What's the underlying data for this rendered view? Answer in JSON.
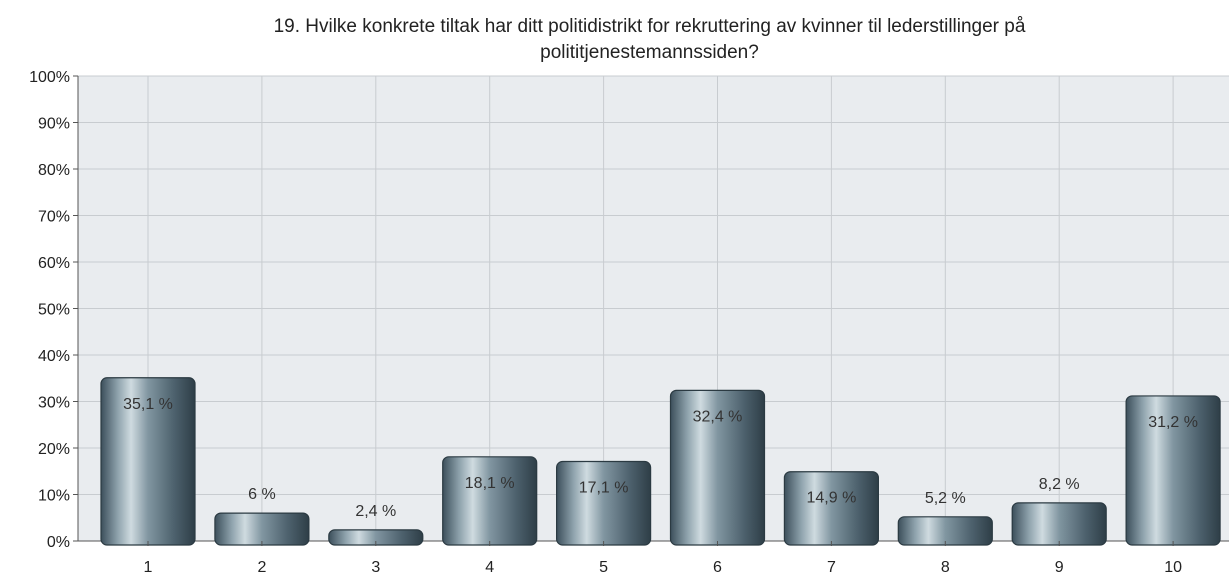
{
  "chart_data": {
    "type": "bar",
    "title_line1": "19. Hvilke konkrete tiltak har ditt politidistrikt for rekruttering av kvinner til lederstillinger på",
    "title_line2": "polititjenestemannssiden?",
    "categories": [
      "1",
      "2",
      "3",
      "4",
      "5",
      "6",
      "7",
      "8",
      "9",
      "10"
    ],
    "values": [
      35.1,
      6,
      2.4,
      18.1,
      17.1,
      32.4,
      14.9,
      5.2,
      8.2,
      31.2
    ],
    "data_labels": [
      "35,1 %",
      "6 %",
      "2,4 %",
      "18,1 %",
      "17,1 %",
      "32,4 %",
      "14,9 %",
      "5,2 %",
      "8,2 %",
      "31,2 %"
    ],
    "y_ticks": [
      "0%",
      "10%",
      "20%",
      "30%",
      "40%",
      "50%",
      "60%",
      "70%",
      "80%",
      "90%",
      "100%"
    ],
    "ylim": [
      0,
      100
    ],
    "xlabel": "",
    "ylabel": "",
    "grid": true,
    "colors": {
      "plot_background": "#e9ecef",
      "grid": "#c8ccd0",
      "bar_dark": "#3f5360",
      "bar_light": "#c9d6dc",
      "bar_outline": "#2b3a42"
    }
  }
}
